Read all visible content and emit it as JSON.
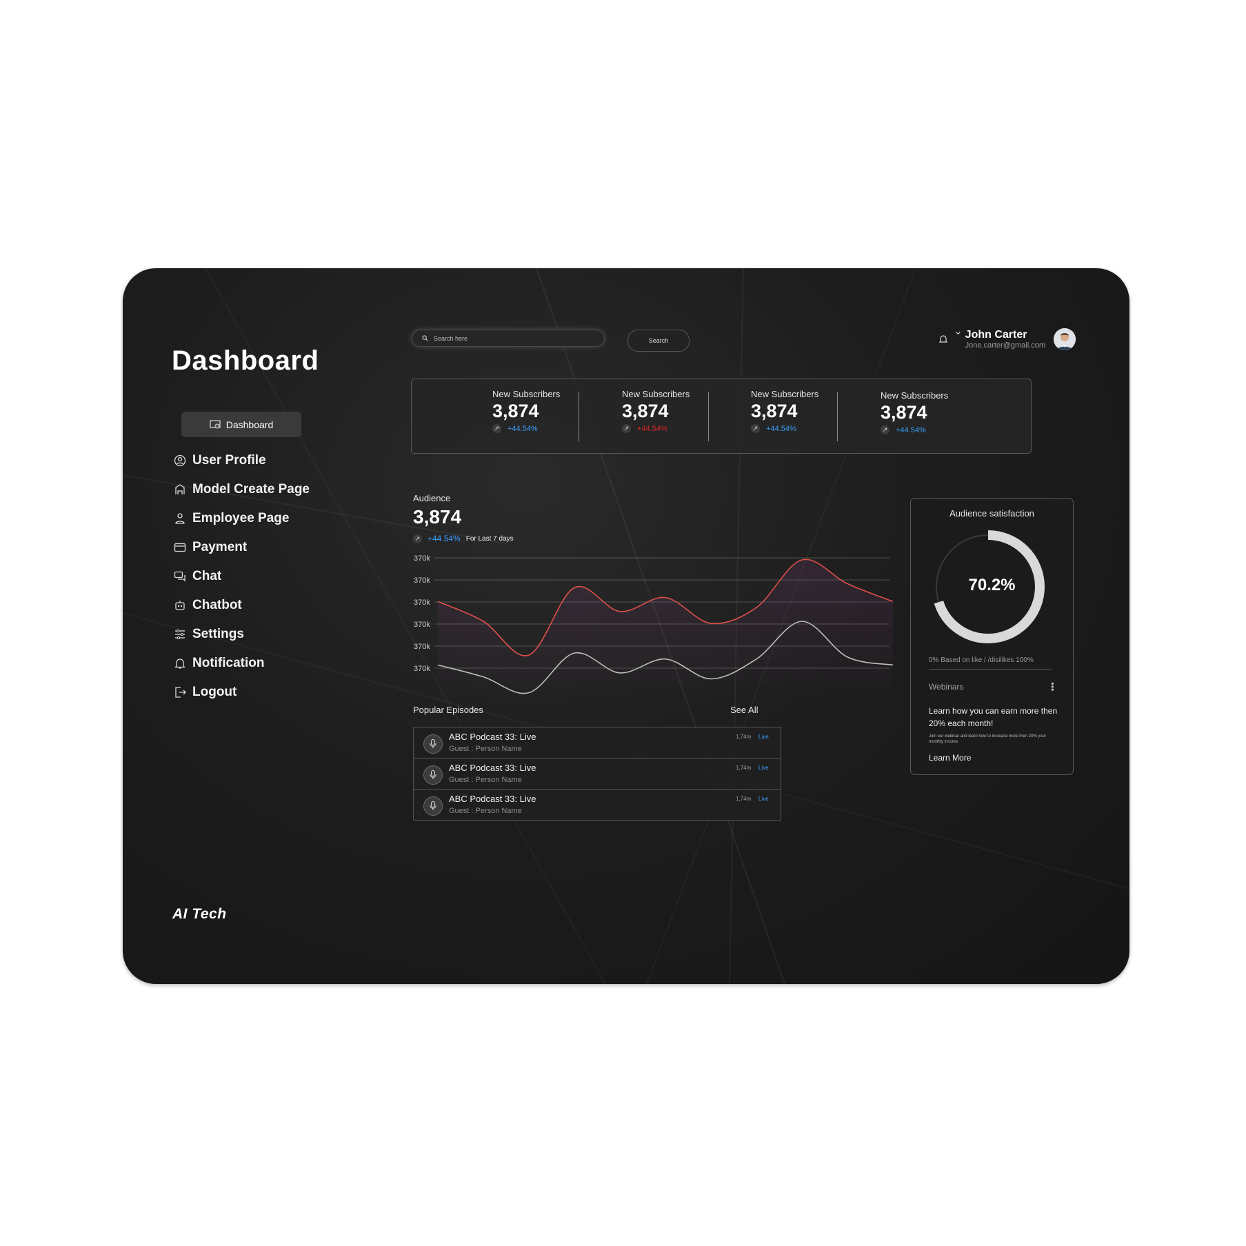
{
  "sidebar": {
    "title": "Dashboard",
    "active_item": "Dashboard",
    "items": [
      {
        "label": "User Profile",
        "icon": "user-circle-icon"
      },
      {
        "label": "Model Create Page",
        "icon": "model-icon"
      },
      {
        "label": "Employee Page",
        "icon": "employee-icon"
      },
      {
        "label": "Payment",
        "icon": "payment-icon"
      },
      {
        "label": "Chat",
        "icon": "chat-icon"
      },
      {
        "label": "Chatbot",
        "icon": "chatbot-icon"
      },
      {
        "label": "Settings",
        "icon": "sliders-icon"
      },
      {
        "label": "Notification",
        "icon": "bell-icon"
      },
      {
        "label": "Logout",
        "icon": "logout-icon"
      }
    ],
    "brand": "AI Tech"
  },
  "header": {
    "search_placeholder": "Search here",
    "search_button": "Search",
    "user_name": "John Carter",
    "user_email": "Jone.carter@gmail.com"
  },
  "stats": [
    {
      "label": "New Subscribers",
      "value": "3,874",
      "change": "+44.54%",
      "change_color": "#3aa0ff"
    },
    {
      "label": "New Subscribers",
      "value": "3,874",
      "change": "+44.54%",
      "change_color": "#e02424"
    },
    {
      "label": "New Subscribers",
      "value": "3,874",
      "change": "+44.54%",
      "change_color": "#3aa0ff"
    },
    {
      "label": "New Subscribers",
      "value": "3,874",
      "change": "+44.54%",
      "change_color": "#3aa0ff"
    }
  ],
  "audience": {
    "label": "Audience",
    "value": "3,874",
    "change": "+44.54%",
    "period": "For Last 7 days"
  },
  "chart_data": {
    "type": "line",
    "y_tick_labels": [
      "370k",
      "370k",
      "370k",
      "370k",
      "370k",
      "370k"
    ],
    "x": [
      0,
      1,
      2,
      3,
      4,
      5,
      6,
      7,
      8,
      9,
      10
    ],
    "series": [
      {
        "color": "#e0504a",
        "values": [
          3.6,
          2.6,
          0.9,
          4.3,
          3.1,
          3.8,
          2.5,
          3.3,
          5.7,
          4.5,
          3.6
        ]
      },
      {
        "color": "#bdbdbd",
        "values": [
          0.4,
          -0.2,
          -1.0,
          1.0,
          -0.0,
          0.7,
          -0.3,
          0.7,
          2.6,
          0.8,
          0.4
        ]
      }
    ],
    "grid": true,
    "legend": "none"
  },
  "episodes": {
    "title": "Popular Episodes",
    "see_all": "See All",
    "items": [
      {
        "title": "ABC Podcast 33: Live",
        "guest": "Guest : Person Name",
        "plays": "1,74m",
        "status": "Live"
      },
      {
        "title": "ABC Podcast 33: Live",
        "guest": "Guest : Person Name",
        "plays": "1,74m",
        "status": "Live"
      },
      {
        "title": "ABC Podcast 33: Live",
        "guest": "Guest : Person Name",
        "plays": "1,74m",
        "status": "Live"
      }
    ]
  },
  "satisfaction": {
    "title": "Audience satisfaction",
    "percent_label": "70.2%",
    "percent": 70.2,
    "note": "0% Based on like / /disilikes 100%",
    "webinar_title": "Webinars",
    "webinar_headline": "Learn how you can earn more then 20% each month!",
    "webinar_sub": "Join our webinar and learn how to increase more then 20% your monthly income.",
    "webinar_link": "Learn More"
  },
  "colors": {
    "positive": "#3aa0ff",
    "negative": "#e02424",
    "background": "#1b1b1b"
  }
}
